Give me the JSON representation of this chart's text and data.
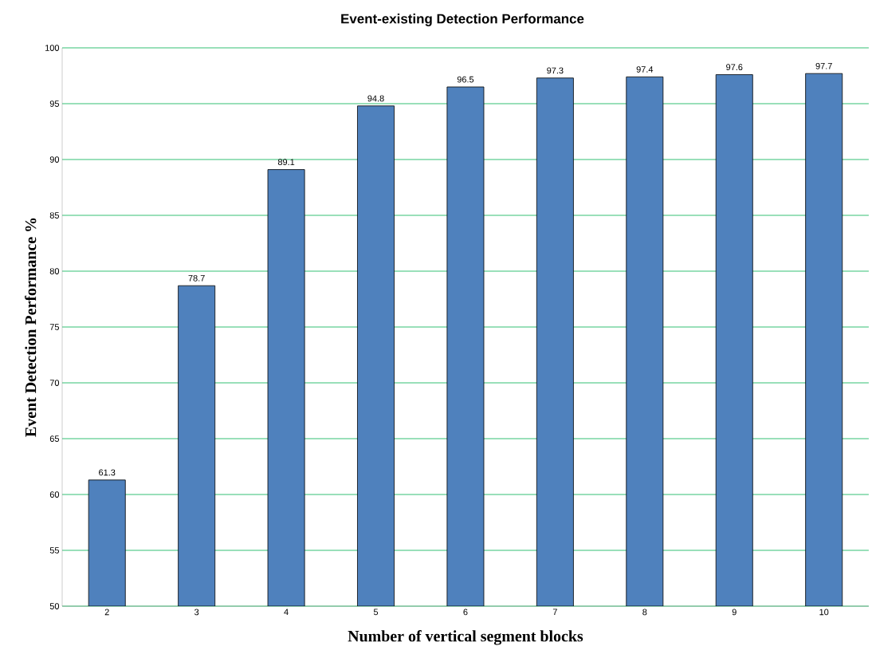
{
  "chart_data": {
    "type": "bar",
    "title": "Event-existing Detection Performance",
    "xlabel": "Number of vertical segment blocks",
    "ylabel": "Event Detection Performance %",
    "categories": [
      "2",
      "3",
      "4",
      "5",
      "6",
      "7",
      "8",
      "9",
      "10"
    ],
    "values": [
      61.3,
      78.7,
      89.1,
      94.8,
      96.5,
      97.3,
      97.4,
      97.6,
      97.7
    ],
    "color": "#4f81bd",
    "ylim": [
      50,
      100
    ],
    "yticks": [
      50,
      55,
      60,
      65,
      70,
      75,
      80,
      85,
      90,
      95,
      100
    ],
    "grid": "y",
    "data_labels": true
  }
}
